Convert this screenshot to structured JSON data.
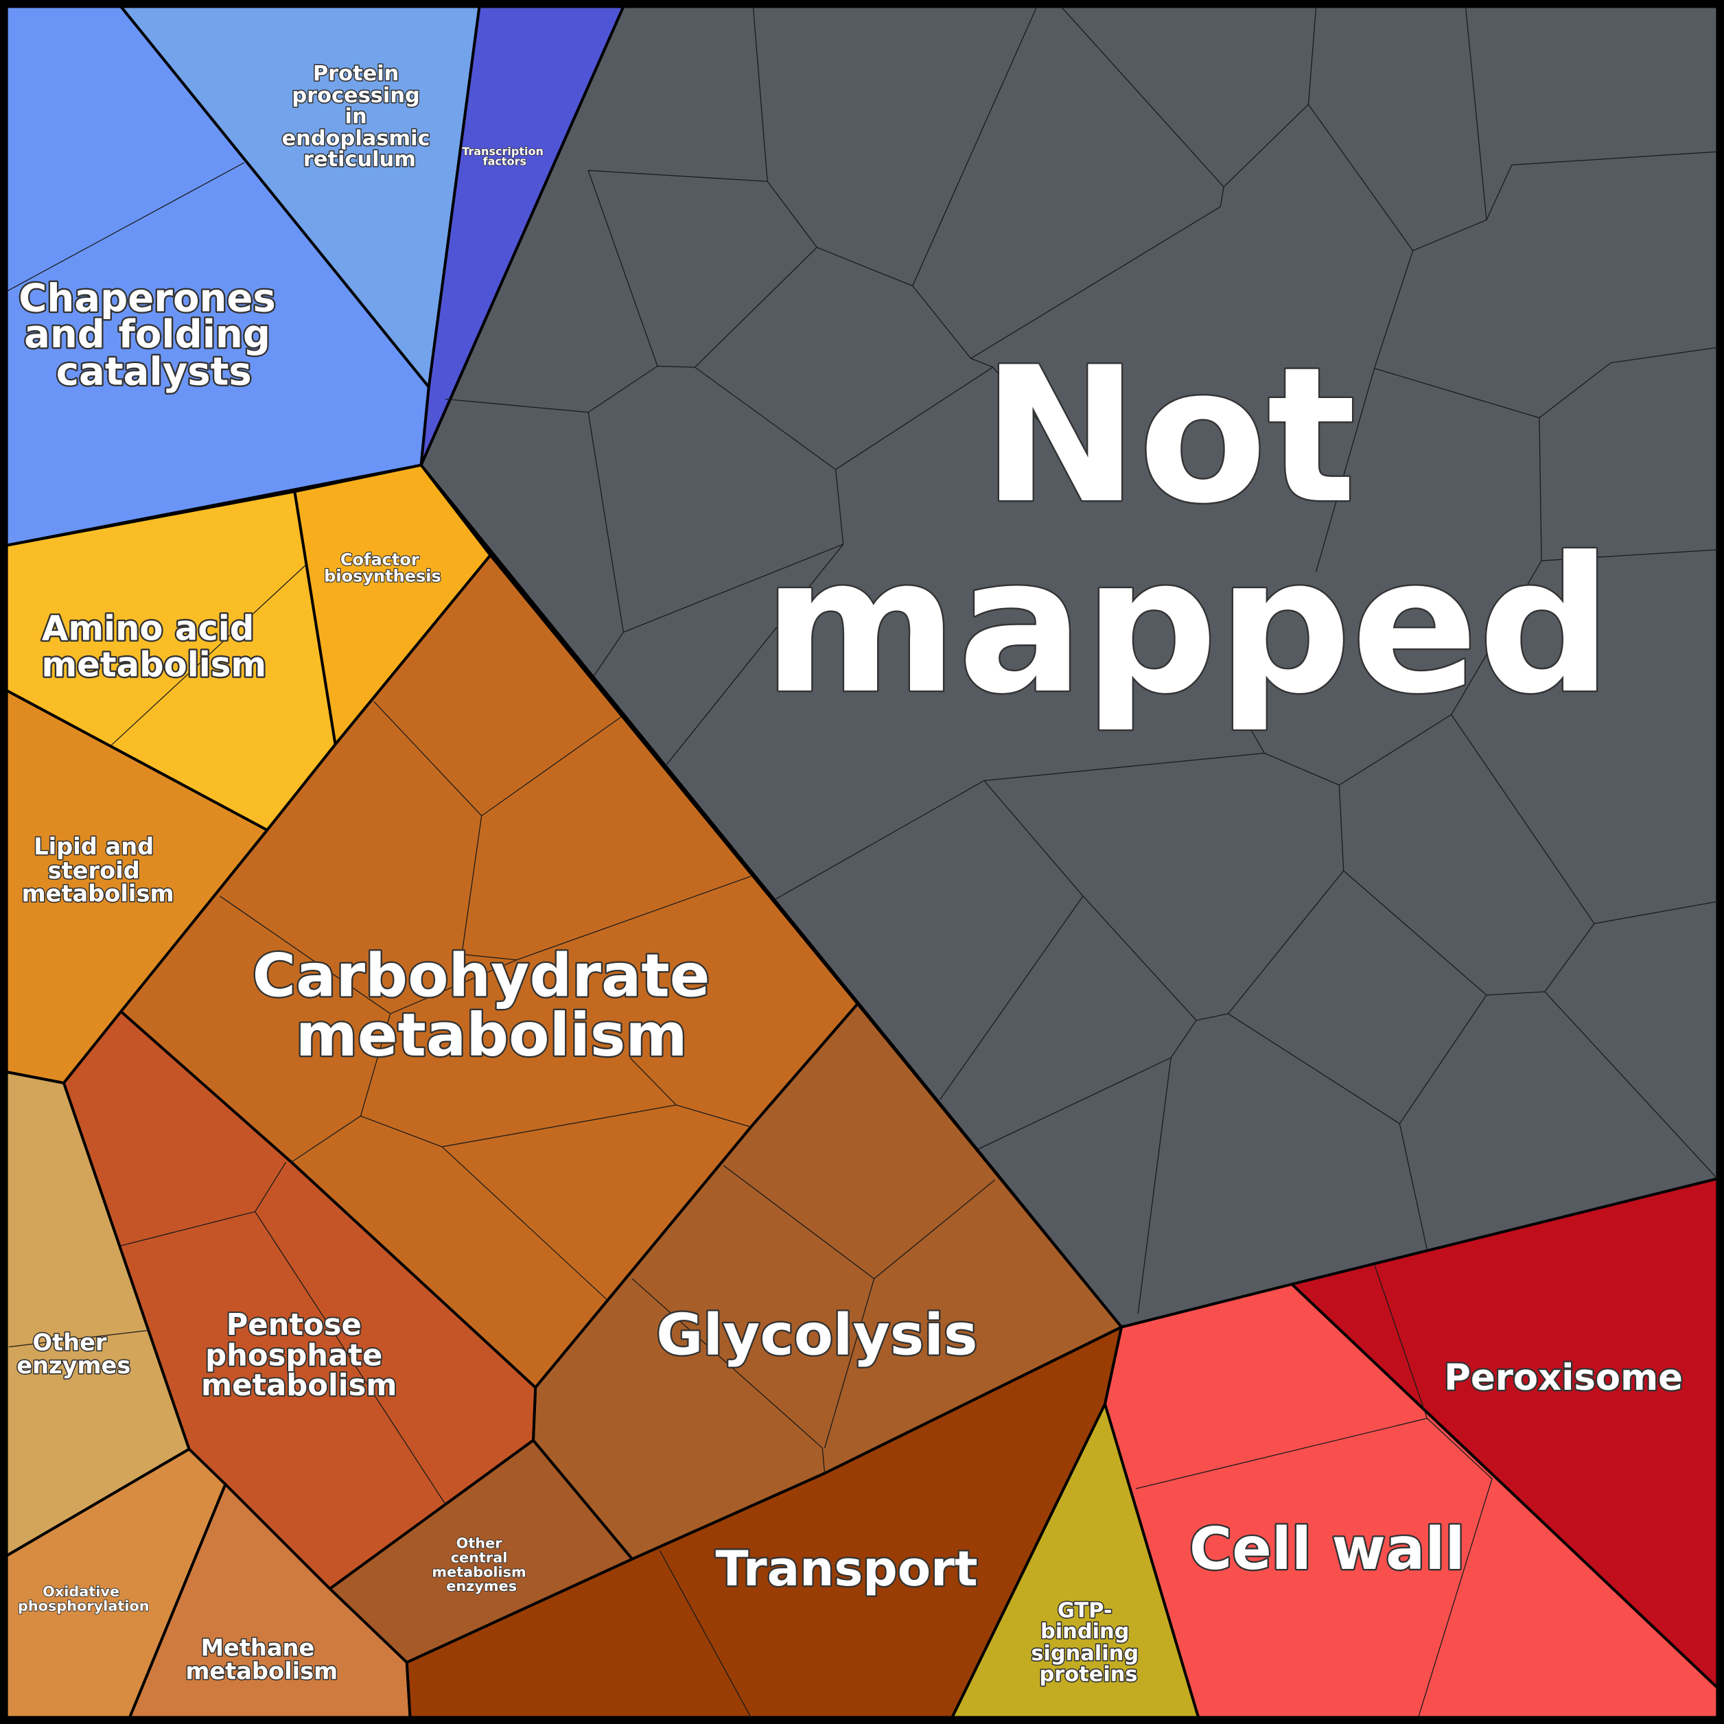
{
  "cells": [
    {
      "label": [
        "Not",
        "mapped"
      ]
    },
    {
      "label": [
        "Chaperones",
        "and folding",
        "catalysts"
      ]
    },
    {
      "label": [
        "Protein",
        "processing",
        "in",
        "endoplasmic",
        "reticulum"
      ]
    },
    {
      "label": [
        "Transcription",
        "factors"
      ]
    },
    {
      "label": [
        "Amino acid",
        "metabolism"
      ]
    },
    {
      "label": [
        "Cofactor",
        "biosynthesis"
      ]
    },
    {
      "label": [
        "Lipid and",
        "steroid",
        "metabolism"
      ]
    },
    {
      "label": [
        "Carbohydrate",
        "metabolism"
      ]
    },
    {
      "label": [
        "Glycolysis"
      ]
    },
    {
      "label": [
        "Pentose",
        "phosphate",
        "metabolism"
      ]
    },
    {
      "label": [
        "Other",
        "central",
        "metabolism",
        "enzymes"
      ]
    },
    {
      "label": [
        "Other",
        "enzymes"
      ]
    },
    {
      "label": [
        "Oxidative",
        "phosphorylation"
      ]
    },
    {
      "label": [
        "Methane",
        "metabolism"
      ]
    },
    {
      "label": [
        "Transport"
      ]
    },
    {
      "label": [
        "GTP-",
        "binding",
        "signaling",
        "proteins"
      ]
    },
    {
      "label": [
        "Cell wall"
      ]
    },
    {
      "label": [
        "Peroxisome"
      ]
    }
  ]
}
